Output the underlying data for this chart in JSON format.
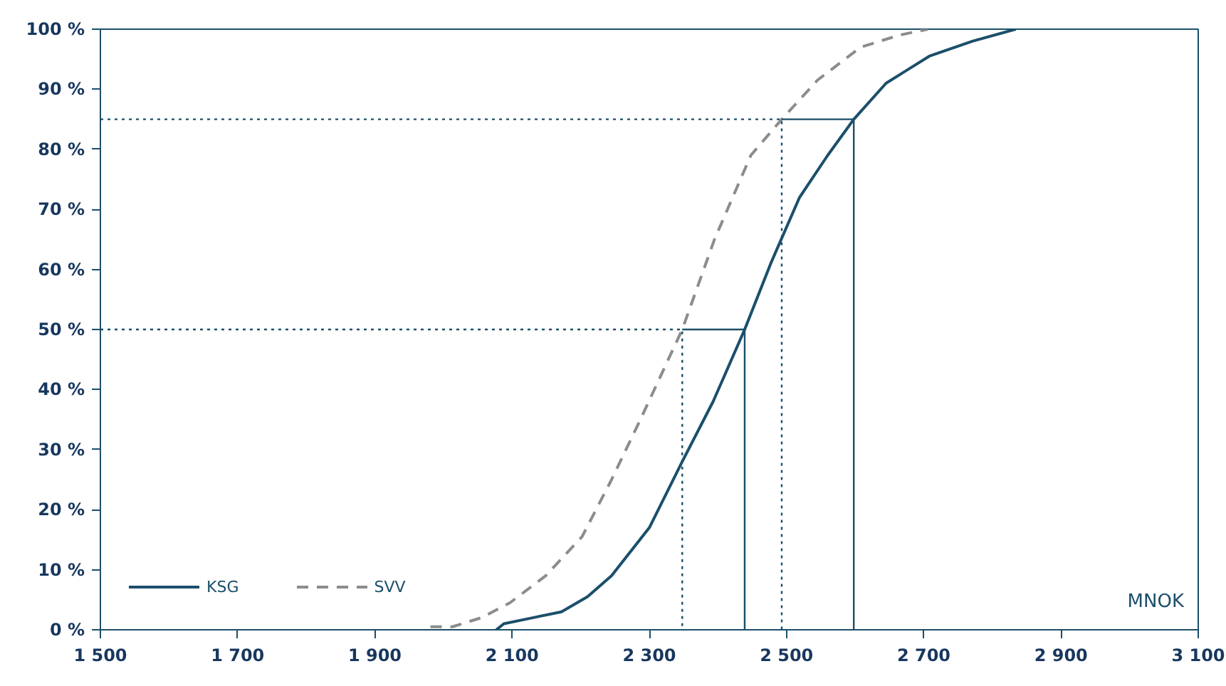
{
  "chart_data": {
    "type": "line",
    "xlabel": "MNOK",
    "xlim": [
      1500,
      3100
    ],
    "ylim": [
      0,
      100
    ],
    "xticks": [
      {
        "value": 1500,
        "label": "1 500"
      },
      {
        "value": 1700,
        "label": "1 700"
      },
      {
        "value": 1900,
        "label": "1 900"
      },
      {
        "value": 2100,
        "label": "2 100"
      },
      {
        "value": 2300,
        "label": "2 300"
      },
      {
        "value": 2500,
        "label": "2 500"
      },
      {
        "value": 2700,
        "label": "2 700"
      },
      {
        "value": 2900,
        "label": "2 900"
      },
      {
        "value": 3100,
        "label": "3 100"
      }
    ],
    "yticks": [
      {
        "value": 0,
        "label": "0 %"
      },
      {
        "value": 10,
        "label": "10 %"
      },
      {
        "value": 20,
        "label": "20 %"
      },
      {
        "value": 30,
        "label": "30 %"
      },
      {
        "value": 40,
        "label": "40 %"
      },
      {
        "value": 50,
        "label": "50 %"
      },
      {
        "value": 60,
        "label": "60 %"
      },
      {
        "value": 70,
        "label": "70 %"
      },
      {
        "value": 80,
        "label": "80 %"
      },
      {
        "value": 90,
        "label": "90 %"
      },
      {
        "value": 100,
        "label": "100 %"
      }
    ],
    "grid": false,
    "legend": "bottom left",
    "marker": "none",
    "series": [
      {
        "name": "KSG",
        "color": "#1b4f6b",
        "line_style": "solid",
        "x": [
          2077,
          2088,
          2130,
          2172,
          2210,
          2245,
          2300,
          2348,
          2393,
          2439,
          2477,
          2519,
          2560,
          2598,
          2645,
          2708,
          2771,
          2834
        ],
        "values": [
          0,
          1,
          2,
          3,
          5.5,
          9,
          17,
          28,
          38,
          50,
          61,
          72,
          79,
          85,
          91,
          95.5,
          98,
          100
        ]
      },
      {
        "name": "SVV",
        "color": "#8c8c8c",
        "line_style": "dashed",
        "x": [
          1981,
          2013,
          2055,
          2097,
          2149,
          2202,
          2245,
          2287,
          2348,
          2395,
          2448,
          2493,
          2545,
          2608,
          2664,
          2706
        ],
        "values": [
          0.5,
          0.5,
          2,
          4.5,
          9,
          15.5,
          25,
          35,
          50,
          65,
          79,
          85,
          91.5,
          97,
          99,
          100
        ]
      },
      {
        "color": "#1b4f6b",
        "line_style": "solid",
        "x": [
          2348,
          2439,
          2439
        ],
        "values": [
          50,
          50,
          0
        ]
      },
      {
        "color": "#1b4f6b",
        "line_style": "solid",
        "x": [
          2493,
          2598,
          2598
        ],
        "values": [
          85,
          85,
          0
        ]
      },
      {
        "color": "#1b4f6b",
        "line_style": "dotted",
        "x": [
          1500,
          2348,
          2348
        ],
        "values": [
          50,
          50,
          0
        ]
      },
      {
        "color": "#1b4f6b",
        "line_style": "dotted",
        "x": [
          1500,
          2493,
          2493
        ],
        "values": [
          85,
          85,
          0
        ]
      }
    ]
  }
}
